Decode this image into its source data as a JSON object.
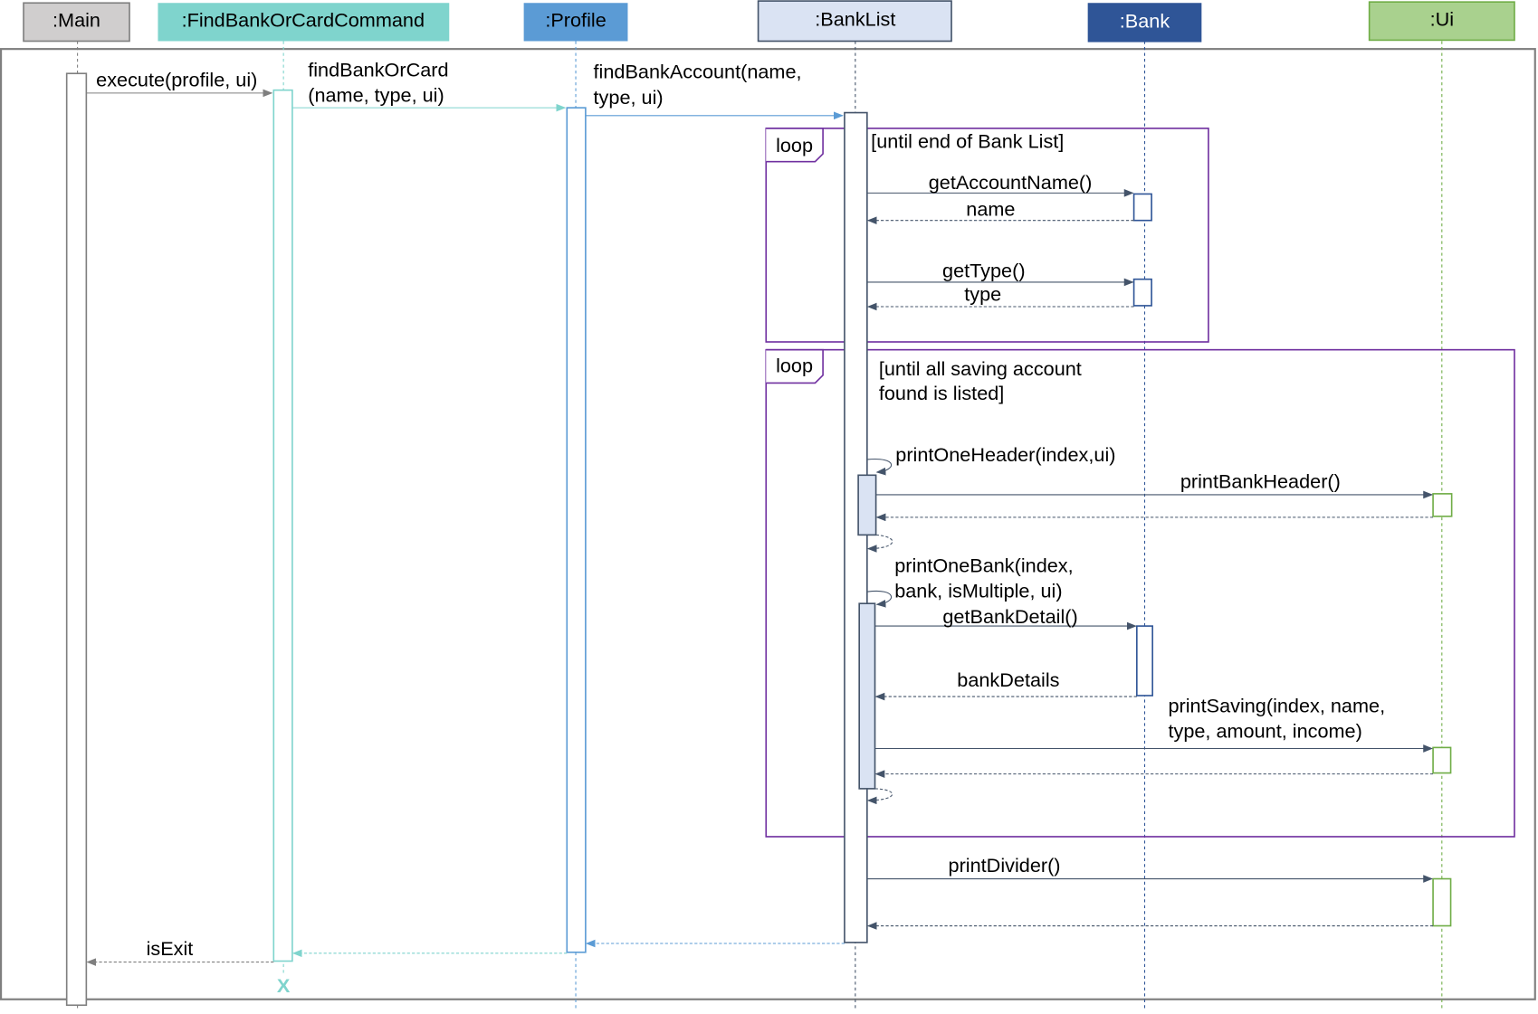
{
  "participants": [
    {
      "label": ":Main",
      "fill": "#d0cece",
      "stroke": "#7f7f7f"
    },
    {
      "label": ":FindBankOrCardCommand",
      "fill": "#7fd4cd",
      "stroke": "#7fd4cd"
    },
    {
      "label": ":Profile",
      "fill": "#5b9bd5",
      "stroke": "#5b9bd5"
    },
    {
      "label": ":BankList",
      "fill": "#dae3f3",
      "stroke": "#44546a"
    },
    {
      "label": ":Bank",
      "fill": "#2f5597",
      "stroke": "#2f5597"
    },
    {
      "label": ":Ui",
      "fill": "#a9d18e",
      "stroke": "#70ad47"
    }
  ],
  "messages": {
    "execute": "execute(profile, ui)",
    "findBankOrCard_1": "findBankOrCard",
    "findBankOrCard_2": "(name, type, ui)",
    "findBankAccount_1": "findBankAccount(name,",
    "findBankAccount_2": "type, ui)",
    "getAccountName": "getAccountName()",
    "name": "name",
    "getType": "getType()",
    "type": "type",
    "printOneHeader": "printOneHeader(index,ui)",
    "printBankHeader": "printBankHeader()",
    "printOneBank_1": "printOneBank(index,",
    "printOneBank_2": "bank, isMultiple, ui)",
    "getBankDetail": "getBankDetail()",
    "bankDetails": "bankDetails",
    "printSaving_1": "printSaving(index, name,",
    "printSaving_2": "type, amount, income)",
    "printDivider": "printDivider()",
    "isExit": "isExit",
    "destroy": "X"
  },
  "fragments": [
    {
      "kind": "loop",
      "guard_1": "[until end of Bank List]"
    },
    {
      "kind": "loop",
      "guard_1": "[until all saving account",
      "guard_2": "found is listed]"
    }
  ],
  "colors": {
    "loop": "#7030a0",
    "frame": "#7f7f7f"
  }
}
